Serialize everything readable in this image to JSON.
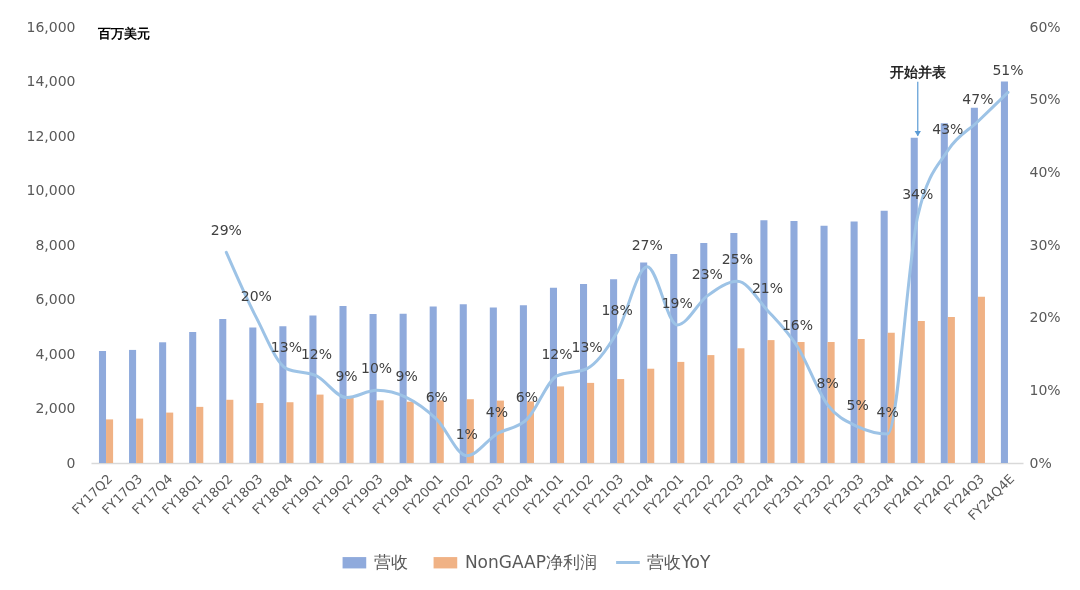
{
  "chart_data": {
    "type": "bar",
    "ylabel": "百万美元",
    "categories": [
      "FY17Q2",
      "FY17Q3",
      "FY17Q4",
      "FY18Q1",
      "FY18Q2",
      "FY18Q3",
      "FY18Q4",
      "FY19Q1",
      "FY19Q2",
      "FY19Q3",
      "FY19Q4",
      "FY20Q1",
      "FY20Q2",
      "FY20Q3",
      "FY20Q4",
      "FY21Q1",
      "FY21Q2",
      "FY21Q3",
      "FY21Q4",
      "FY22Q1",
      "FY22Q2",
      "FY22Q3",
      "FY22Q4",
      "FY23Q1",
      "FY23Q2",
      "FY23Q3",
      "FY23Q4",
      "FY24Q1",
      "FY24Q2",
      "FY24Q3",
      "FY24Q4E"
    ],
    "series": [
      {
        "name": "营收",
        "color": "#8faadc",
        "values": [
          4110,
          4150,
          4430,
          4810,
          5280,
          4970,
          5020,
          5410,
          5760,
          5470,
          5480,
          5740,
          5830,
          5710,
          5790,
          6430,
          6570,
          6740,
          7360,
          7670,
          8070,
          8440,
          8910,
          8880,
          8710,
          8860,
          9260,
          11940,
          12470,
          13040,
          14000
        ]
      },
      {
        "name": "NonGAAP净利润",
        "color": "#f0b285",
        "values": [
          1600,
          1630,
          1850,
          2060,
          2320,
          2200,
          2230,
          2510,
          2420,
          2300,
          2250,
          2300,
          2340,
          2290,
          2260,
          2810,
          2940,
          3080,
          3460,
          3710,
          3960,
          4210,
          4510,
          4440,
          4440,
          4550,
          4780,
          5210,
          5360,
          6100,
          null
        ]
      },
      {
        "name": "营收YoY",
        "type": "line",
        "axis": "y2",
        "color": "#9dc3e6",
        "values": [
          null,
          null,
          null,
          null,
          29,
          20,
          13,
          12,
          9,
          10,
          9,
          6,
          1,
          4,
          6,
          12,
          13,
          18,
          27,
          19,
          23,
          25,
          21,
          16,
          8,
          5,
          4,
          34,
          43,
          47,
          51
        ],
        "value_labels": [
          null,
          null,
          null,
          null,
          "29%",
          "20%",
          "13%",
          "12%",
          "9%",
          "10%",
          "9%",
          "6%",
          "1%",
          "4%",
          "6%",
          "12%",
          "13%",
          "18%",
          "27%",
          "19%",
          "23%",
          "25%",
          "21%",
          "16%",
          "8%",
          "5%",
          "4%",
          "34%",
          "43%",
          "47%",
          "51%"
        ]
      }
    ],
    "ylim": [
      0,
      16000
    ],
    "yticks": [
      0,
      {
        "value": 2000,
        "label": "2,000"
      },
      {
        "value": 4000,
        "label": "4,000"
      },
      {
        "value": 6000,
        "label": "6,000"
      },
      {
        "value": 8000,
        "label": "8,000"
      },
      {
        "value": 10000,
        "label": "10,000"
      },
      {
        "value": 12000,
        "label": "12,000"
      },
      {
        "value": 14000,
        "label": "14,000"
      },
      {
        "value": 16000,
        "label": "16,000"
      }
    ],
    "y2lim": [
      0,
      60
    ],
    "y2ticks": [
      {
        "value": 0,
        "label": "0%"
      },
      {
        "value": 10,
        "label": "10%"
      },
      {
        "value": 20,
        "label": "20%"
      },
      {
        "value": 30,
        "label": "30%"
      },
      {
        "value": 40,
        "label": "40%"
      },
      {
        "value": 50,
        "label": "50%"
      },
      {
        "value": 60,
        "label": "60%"
      }
    ],
    "annotations": [
      {
        "text": "开始并表",
        "x": "FY24Q1",
        "y": 11940
      }
    ],
    "legend": "bottom"
  }
}
